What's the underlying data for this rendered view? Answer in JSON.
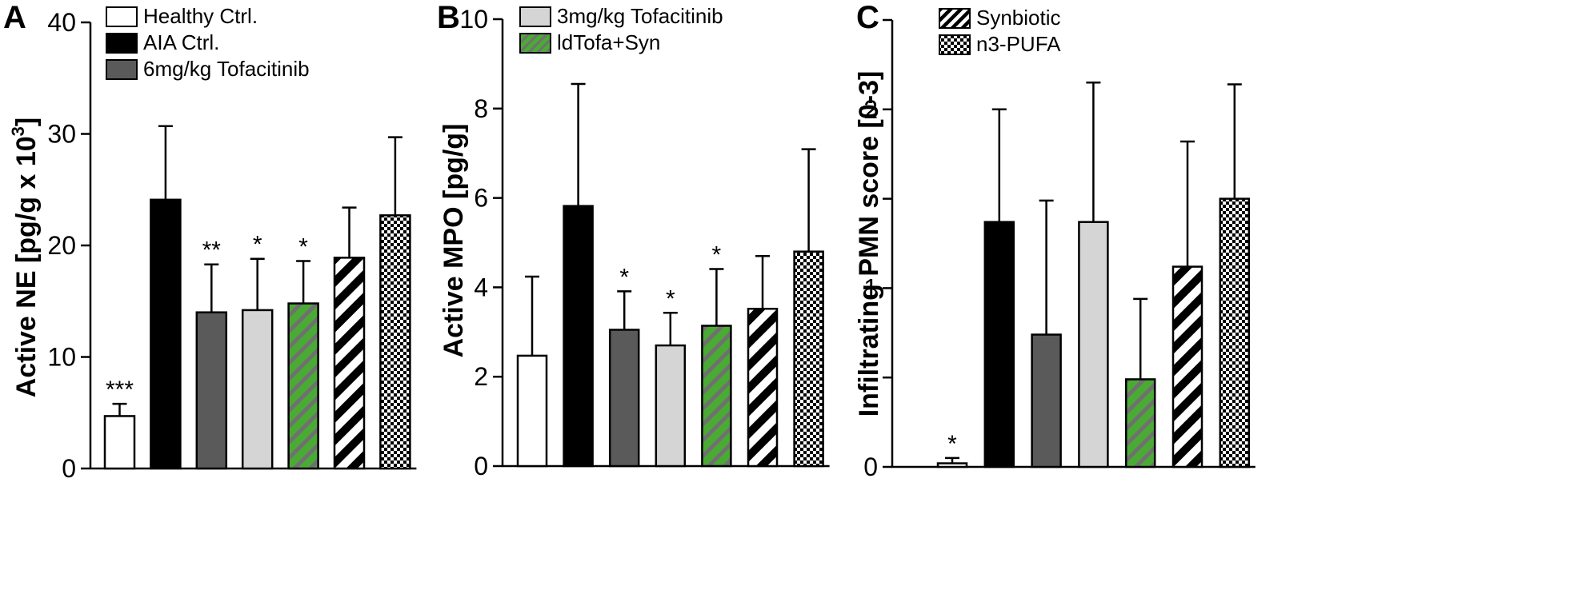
{
  "colors": {
    "healthy": "#ffffff",
    "aia": "#000000",
    "tofa6": "#5a5a5a",
    "tofa3": "#d5d5d5",
    "green": "#4aab34",
    "greenStripe": "#707070",
    "stroke": "#000000"
  },
  "legend_entries": [
    {
      "name": "Healthy Ctrl.",
      "style": "healthy"
    },
    {
      "name": "AIA Ctrl.",
      "style": "aia"
    },
    {
      "name": "6mg/kg Tofacitinib",
      "style": "tofa6"
    },
    {
      "name": "3mg/kg Tofacitinib",
      "style": "tofa3"
    },
    {
      "name": "ldTofa+Syn",
      "style": "green"
    },
    {
      "name": "Synbiotic",
      "style": "synbiotic"
    },
    {
      "name": "n3-PUFA",
      "style": "pufa"
    }
  ],
  "chart_data": [
    {
      "type": "bar",
      "panel": "A",
      "ylabel": "Active NE [pg/g x 10",
      "ylabel_sup": "3",
      "ylabel_close": "]",
      "ylim": [
        0,
        40
      ],
      "yticks": [
        0,
        10,
        20,
        30,
        40
      ],
      "categories": [
        "Healthy Ctrl.",
        "AIA Ctrl.",
        "6mg/kg Tofacitinib",
        "3mg/kg Tofacitinib",
        "ldTofa+Syn",
        "Synbiotic",
        "n3-PUFA"
      ],
      "values": [
        4.7,
        24.1,
        14.0,
        14.2,
        14.8,
        18.9,
        22.7
      ],
      "errors": [
        1.1,
        6.6,
        4.3,
        4.6,
        3.8,
        4.5,
        7.0
      ],
      "significance": [
        "***",
        "",
        "**",
        "*",
        "*",
        "",
        ""
      ],
      "legend": [
        0,
        1,
        2
      ]
    },
    {
      "type": "bar",
      "panel": "B",
      "ylabel": "Active MPO [pg/g]",
      "ylabel_sup": "",
      "ylabel_close": "",
      "ylim": [
        0,
        10
      ],
      "yticks": [
        0,
        2,
        4,
        6,
        8,
        10
      ],
      "categories": [
        "Healthy Ctrl.",
        "AIA Ctrl.",
        "6mg/kg Tofacitinib",
        "3mg/kg Tofacitinib",
        "ldTofa+Syn",
        "Synbiotic",
        "n3-PUFA"
      ],
      "values": [
        2.47,
        5.82,
        3.05,
        2.7,
        3.14,
        3.52,
        4.8
      ],
      "errors": [
        1.77,
        2.73,
        0.86,
        0.73,
        1.27,
        1.18,
        2.29
      ],
      "significance": [
        "",
        "",
        "*",
        "*",
        "*",
        "",
        ""
      ],
      "legend": [
        3,
        4
      ]
    },
    {
      "type": "bar",
      "panel": "C",
      "ylabel": "Infiltrating PMN score [0-3]",
      "ylabel_sup": "",
      "ylabel_close": "",
      "ylim": [
        0,
        2.5
      ],
      "yticks": [
        0,
        0.5,
        1,
        1.5,
        2,
        2.5
      ],
      "ytick_labels": [
        "0",
        "",
        "1",
        "",
        "2",
        ""
      ],
      "categories": [
        "Healthy Ctrl.",
        "AIA Ctrl.",
        "6mg/kg Tofacitinib",
        "3mg/kg Tofacitinib",
        "ldTofa+Syn",
        "Synbiotic",
        "n3-PUFA"
      ],
      "values": [
        0.02,
        1.37,
        0.74,
        1.37,
        0.49,
        1.12,
        1.5
      ],
      "errors": [
        0.03,
        0.63,
        0.75,
        0.78,
        0.45,
        0.7,
        0.64
      ],
      "significance": [
        "*",
        "",
        "",
        "",
        "",
        "",
        ""
      ],
      "legend": [
        5,
        6
      ]
    }
  ]
}
